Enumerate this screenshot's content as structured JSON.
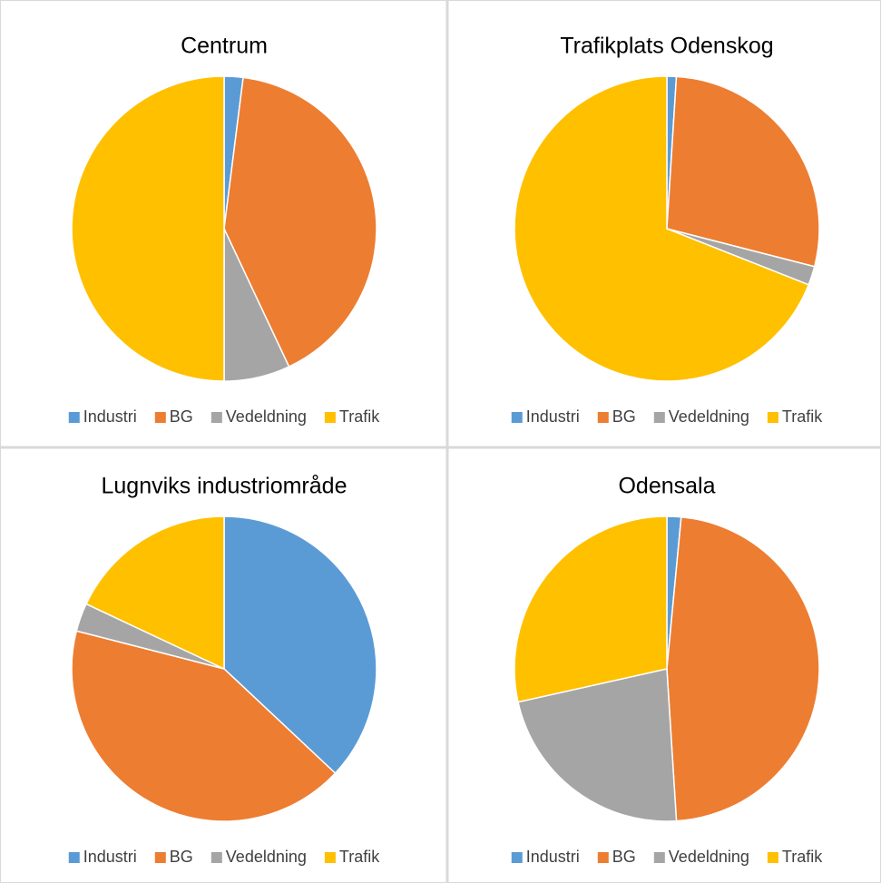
{
  "chart_data": [
    {
      "type": "pie",
      "title": "Centrum",
      "categories": [
        "Industri",
        "BG",
        "Vedeldning",
        "Trafik"
      ],
      "values": [
        2,
        41,
        7,
        50
      ],
      "colors": [
        "#5b9bd5",
        "#ed7d31",
        "#a5a5a5",
        "#ffc000"
      ]
    },
    {
      "type": "pie",
      "title": "Trafikplats Odenskog",
      "categories": [
        "Industri",
        "BG",
        "Vedeldning",
        "Trafik"
      ],
      "values": [
        1,
        28,
        2,
        69
      ],
      "colors": [
        "#5b9bd5",
        "#ed7d31",
        "#a5a5a5",
        "#ffc000"
      ]
    },
    {
      "type": "pie",
      "title": "Lugnviks industriområde",
      "categories": [
        "Industri",
        "BG",
        "Vedeldning",
        "Trafik"
      ],
      "values": [
        37,
        42,
        3,
        18
      ],
      "colors": [
        "#5b9bd5",
        "#ed7d31",
        "#a5a5a5",
        "#ffc000"
      ]
    },
    {
      "type": "pie",
      "title": "Odensala",
      "categories": [
        "Industri",
        "BG",
        "Vedeldning",
        "Trafik"
      ],
      "values": [
        1.5,
        47.5,
        22.5,
        28.5
      ],
      "colors": [
        "#5b9bd5",
        "#ed7d31",
        "#a5a5a5",
        "#ffc000"
      ]
    }
  ]
}
